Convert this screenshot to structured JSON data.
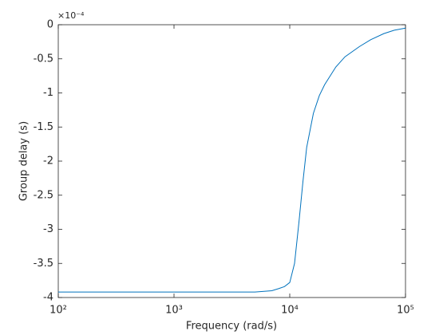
{
  "chart_data": {
    "type": "line",
    "xlabel": "Frequency (rad/s)",
    "ylabel": "Group delay (s)",
    "y_multiplier": "×10⁻⁴",
    "x_log": true,
    "x": [
      100,
      1000,
      3000,
      5000,
      6000,
      7000,
      8000,
      9000,
      10000,
      11000,
      12000,
      13000,
      14000,
      16000,
      18000,
      20000,
      25000,
      30000,
      40000,
      50000,
      65000,
      80000,
      100000
    ],
    "series": [
      {
        "color": "#0072bd",
        "values": [
          -3.92,
          -3.92,
          -3.92,
          -3.92,
          -3.91,
          -3.9,
          -3.87,
          -3.84,
          -3.78,
          -3.5,
          -2.9,
          -2.3,
          -1.8,
          -1.3,
          -1.04,
          -0.88,
          -0.62,
          -0.47,
          -0.32,
          -0.22,
          -0.13,
          -0.08,
          -0.05
        ]
      }
    ],
    "xlim": [
      100,
      100000
    ],
    "xticks": [
      {
        "value": 100,
        "label": "10²"
      },
      {
        "value": 1000,
        "label": "10³"
      },
      {
        "value": 10000,
        "label": "10⁴"
      },
      {
        "value": 100000,
        "label": "10⁵"
      }
    ],
    "ylim": [
      -4,
      0
    ],
    "yticks": [
      -4,
      -3.5,
      -3,
      -2.5,
      -2,
      -1.5,
      -1,
      -0.5,
      0
    ]
  }
}
